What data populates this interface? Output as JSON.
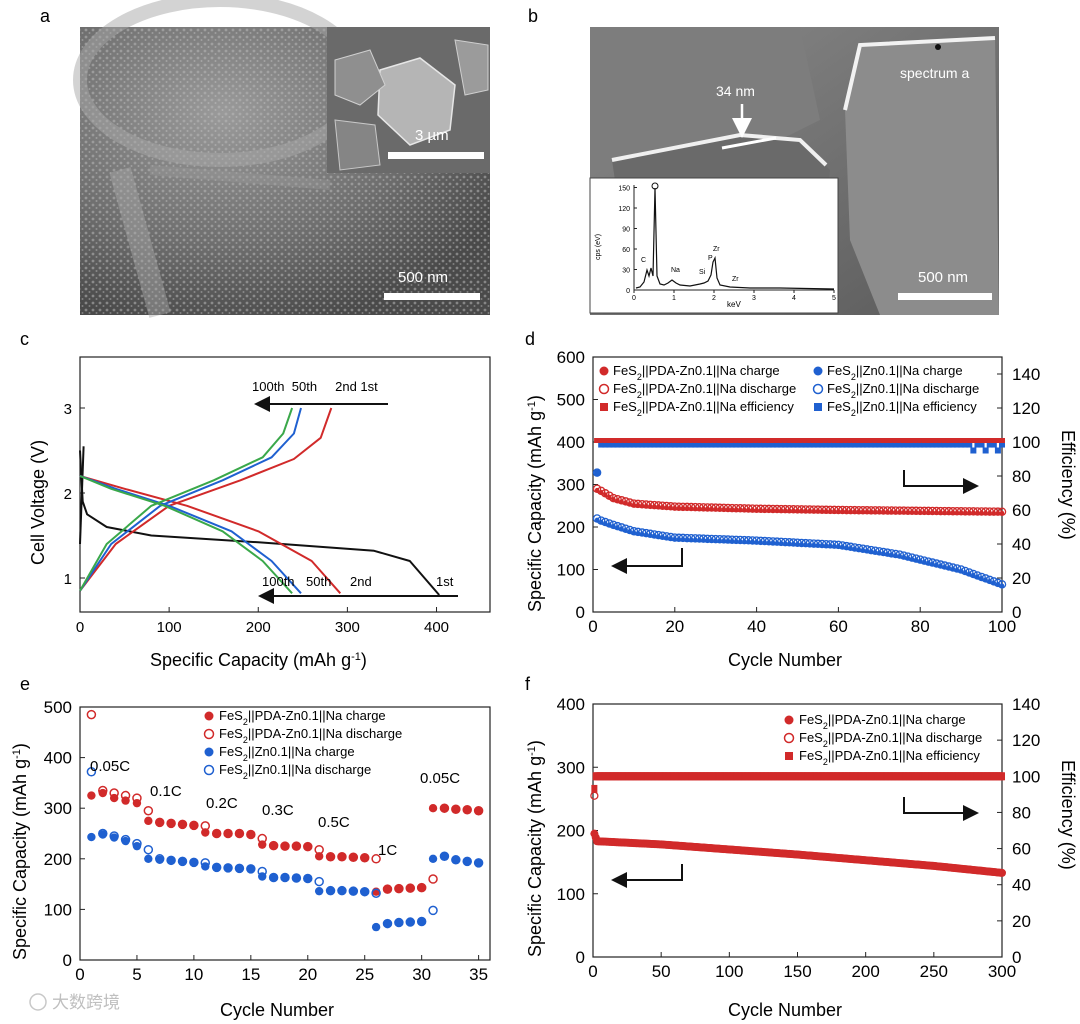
{
  "panel_labels": {
    "a": "a",
    "b": "b",
    "c": "c",
    "d": "d",
    "e": "e",
    "f": "f"
  },
  "sem_a": {
    "scale_main": "500 nm",
    "scale_inset": "3 µm"
  },
  "sem_b": {
    "thickness": "34 nm",
    "spectrum_label": "spectrum a",
    "scale": "500 nm"
  },
  "eds": {
    "ylabel": "cps (eV)",
    "xlabel": "keV",
    "yticks": [
      "0",
      "30",
      "60",
      "90",
      "120",
      "150"
    ],
    "xticks": [
      "0",
      "1",
      "2",
      "3",
      "4",
      "5"
    ],
    "peaks": [
      "O",
      "C",
      "Na",
      "Si",
      "P",
      "Zr",
      "Zr"
    ]
  },
  "watermark": "大数跨境",
  "colors": {
    "red": "#d12a2a",
    "blue": "#1f60d0",
    "green": "#3aa84a",
    "black": "#111111"
  },
  "chart_data": [
    {
      "id": "c",
      "type": "line",
      "xlabel": "Specific Capacity (mAh g-1)",
      "ylabel": "Cell Voltage (V)",
      "xlim": [
        0,
        460
      ],
      "ylim": [
        0.6,
        3.6
      ],
      "xticks": [
        "0",
        "100",
        "200",
        "300",
        "400"
      ],
      "yticks": [
        "1",
        "2",
        "3"
      ],
      "charge_annotation": "100th  50th     2nd 1st",
      "discharge_annotation": {
        "c100": "100th",
        "c50": "50th",
        "c2": "2nd",
        "c1": "1st"
      },
      "series": [
        {
          "name": "1st",
          "color": "#111111",
          "discharge": [
            [
              0,
              2.5
            ],
            [
              3,
              1.9
            ],
            [
              8,
              1.75
            ],
            [
              30,
              1.6
            ],
            [
              80,
              1.5
            ],
            [
              200,
              1.42
            ],
            [
              330,
              1.32
            ],
            [
              370,
              1.2
            ],
            [
              403,
              0.8
            ]
          ],
          "charge": [
            [
              0,
              1.4
            ],
            [
              4,
              2.55
            ]
          ]
        },
        {
          "name": "2nd",
          "color": "#d12a2a",
          "discharge": [
            [
              0,
              2.2
            ],
            [
              50,
              2.05
            ],
            [
              120,
              1.85
            ],
            [
              200,
              1.55
            ],
            [
              260,
              1.2
            ],
            [
              292,
              0.82
            ]
          ],
          "charge": [
            [
              0,
              0.85
            ],
            [
              40,
              1.4
            ],
            [
              100,
              1.85
            ],
            [
              180,
              2.15
            ],
            [
              240,
              2.4
            ],
            [
              270,
              2.65
            ],
            [
              282,
              3.0
            ]
          ]
        },
        {
          "name": "50th",
          "color": "#1f60d0",
          "discharge": [
            [
              0,
              2.2
            ],
            [
              40,
              2.05
            ],
            [
              100,
              1.85
            ],
            [
              170,
              1.55
            ],
            [
              215,
              1.2
            ],
            [
              248,
              0.82
            ]
          ],
          "charge": [
            [
              0,
              0.85
            ],
            [
              35,
              1.4
            ],
            [
              90,
              1.85
            ],
            [
              160,
              2.15
            ],
            [
              215,
              2.42
            ],
            [
              240,
              2.7
            ],
            [
              248,
              3.0
            ]
          ]
        },
        {
          "name": "100th",
          "color": "#3aa84a",
          "discharge": [
            [
              0,
              2.2
            ],
            [
              35,
              2.05
            ],
            [
              95,
              1.85
            ],
            [
              160,
              1.55
            ],
            [
              205,
              1.2
            ],
            [
              238,
              0.82
            ]
          ],
          "charge": [
            [
              0,
              0.85
            ],
            [
              30,
              1.4
            ],
            [
              80,
              1.85
            ],
            [
              150,
              2.15
            ],
            [
              205,
              2.42
            ],
            [
              228,
              2.7
            ],
            [
              238,
              3.0
            ]
          ]
        }
      ]
    },
    {
      "id": "d",
      "type": "scatter",
      "xlabel": "Cycle Number",
      "ylabel": "Specific Capacity (mAh g-1)",
      "y2label": "Efficiency (%)",
      "xlim": [
        0,
        100
      ],
      "ylim": [
        0,
        600
      ],
      "y2lim": [
        0,
        150
      ],
      "xticks": [
        "0",
        "20",
        "40",
        "60",
        "80",
        "100"
      ],
      "yticks": [
        "0",
        "100",
        "200",
        "300",
        "400",
        "500",
        "600"
      ],
      "y2ticks": [
        "0",
        "20",
        "40",
        "60",
        "80",
        "100",
        "120",
        "140"
      ],
      "legend": [
        "FeS2||PDA-Zn0.1||Na charge",
        "FeS2||Zn0.1||Na charge",
        "FeS2||PDA-Zn0.1||Na discharge",
        "FeS2||Zn0.1||Na discharge",
        "FeS2||PDA-Zn0.1||Na efficiency",
        "FeS2||Zn0.1||Na efficiency"
      ],
      "series": [
        {
          "name": "PDA-Zn0.1 capacity",
          "color": "#d12a2a",
          "first": 290,
          "points": [
            [
              2,
              285
            ],
            [
              5,
              268
            ],
            [
              10,
              255
            ],
            [
              20,
              248
            ],
            [
              40,
              243
            ],
            [
              60,
              240
            ],
            [
              80,
              238
            ],
            [
              100,
              236
            ]
          ]
        },
        {
          "name": "Zn0.1 capacity",
          "color": "#1f60d0",
          "first": 220,
          "points": [
            [
              2,
              215
            ],
            [
              5,
              205
            ],
            [
              10,
              190
            ],
            [
              20,
              175
            ],
            [
              40,
              168
            ],
            [
              60,
              158
            ],
            [
              75,
              135
            ],
            [
              90,
              100
            ],
            [
              100,
              65
            ]
          ]
        },
        {
          "name": "PDA-Zn0.1 efficiency",
          "color": "#d12a2a",
          "first": 100,
          "value": 100
        },
        {
          "name": "Zn0.1 efficiency",
          "color": "#1f60d0",
          "first": 82,
          "value": 98.5
        }
      ]
    },
    {
      "id": "e",
      "type": "scatter",
      "xlabel": "Cycle Number",
      "ylabel": "Specific Capacity (mAh g-1)",
      "xlim": [
        0,
        36
      ],
      "ylim": [
        0,
        500
      ],
      "xticks": [
        "0",
        "5",
        "10",
        "15",
        "20",
        "25",
        "30",
        "35"
      ],
      "yticks": [
        "0",
        "100",
        "200",
        "300",
        "400",
        "500"
      ],
      "rate_labels": [
        "0.05C",
        "0.1C",
        "0.2C",
        "0.3C",
        "0.5C",
        "1C",
        "0.05C"
      ],
      "legend": [
        "FeS2||PDA-Zn0.1||Na charge",
        "FeS2||PDA-Zn0.1||Na discharge",
        "FeS2||Zn0.1||Na charge",
        "FeS2||Zn0.1||Na discharge"
      ],
      "series": [
        {
          "name": "PDA charge",
          "color": "#d12a2a",
          "filled": true,
          "values": [
            325,
            330,
            320,
            315,
            310,
            275,
            272,
            270,
            268,
            266,
            252,
            250,
            250,
            250,
            248,
            228,
            226,
            225,
            225,
            224,
            205,
            204,
            204,
            203,
            202,
            135,
            140,
            141,
            142,
            143,
            300,
            300,
            298,
            297,
            295
          ]
        },
        {
          "name": "PDA discharge",
          "color": "#d12a2a",
          "filled": false,
          "values": [
            485,
            335,
            330,
            325,
            320,
            295,
            272,
            270,
            268,
            266,
            265,
            250,
            250,
            250,
            248,
            240,
            226,
            225,
            225,
            224,
            218,
            204,
            204,
            203,
            202,
            200,
            140,
            141,
            142,
            143,
            160,
            300,
            298,
            297,
            295
          ]
        },
        {
          "name": "Zn charge",
          "color": "#1f60d0",
          "filled": true,
          "values": [
            243,
            248,
            242,
            235,
            225,
            200,
            198,
            196,
            195,
            193,
            185,
            183,
            182,
            181,
            180,
            165,
            163,
            163,
            162,
            161,
            136,
            137,
            137,
            136,
            135,
            65,
            72,
            74,
            75,
            76,
            200,
            205,
            198,
            195,
            192
          ]
        },
        {
          "name": "Zn discharge",
          "color": "#1f60d0",
          "filled": false,
          "values": [
            372,
            250,
            245,
            238,
            230,
            218,
            200,
            197,
            195,
            193,
            192,
            183,
            182,
            181,
            180,
            175,
            163,
            163,
            162,
            161,
            155,
            137,
            137,
            136,
            135,
            132,
            72,
            74,
            75,
            76,
            98,
            205,
            198,
            195,
            192
          ]
        }
      ]
    },
    {
      "id": "f",
      "type": "scatter",
      "xlabel": "Cycle Number",
      "ylabel": "Specific Capacity (mAh g-1)",
      "y2label": "Efficiency (%)",
      "xlim": [
        0,
        300
      ],
      "ylim": [
        0,
        400
      ],
      "y2lim": [
        0,
        140
      ],
      "xticks": [
        "0",
        "50",
        "100",
        "150",
        "200",
        "250",
        "300"
      ],
      "yticks": [
        "0",
        "100",
        "200",
        "300",
        "400"
      ],
      "y2ticks": [
        "0",
        "20",
        "40",
        "60",
        "80",
        "100",
        "120",
        "140"
      ],
      "legend": [
        "FeS2||PDA-Zn0.1||Na charge",
        "FeS2||PDA-Zn0.1||Na discharge",
        "FeS2||PDA-Zn0.1||Na efficiency"
      ],
      "series": [
        {
          "name": "capacity",
          "color": "#d12a2a",
          "points": [
            [
              1,
              195
            ],
            [
              3,
              183
            ],
            [
              50,
              178
            ],
            [
              100,
              170
            ],
            [
              150,
              162
            ],
            [
              200,
              153
            ],
            [
              250,
              144
            ],
            [
              300,
              133
            ]
          ]
        },
        {
          "name": "discharge start",
          "color": "#d12a2a",
          "value": 255
        },
        {
          "name": "efficiency",
          "color": "#d12a2a",
          "value": 100,
          "first": 93
        }
      ]
    }
  ]
}
